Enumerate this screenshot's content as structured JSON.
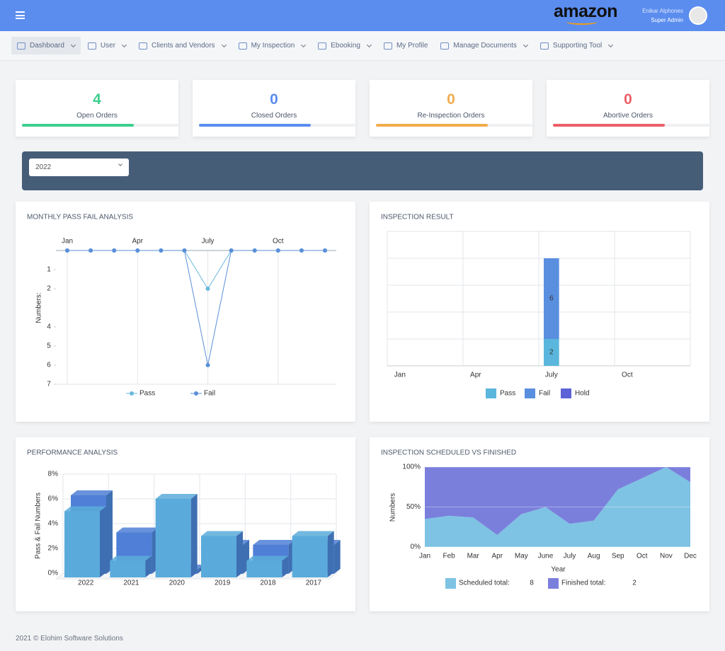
{
  "header": {
    "logo": "amazon",
    "user_name": "Enikar Alphones",
    "user_role": "Super Admin"
  },
  "nav": [
    {
      "label": "Dashboard",
      "dropdown": true,
      "active": true
    },
    {
      "label": "User",
      "dropdown": true
    },
    {
      "label": "Clients and Vendors",
      "dropdown": true
    },
    {
      "label": "My Inspection",
      "dropdown": true
    },
    {
      "label": "Ebooking",
      "dropdown": true
    },
    {
      "label": "My Profile",
      "dropdown": false
    },
    {
      "label": "Manage Documents",
      "dropdown": true
    },
    {
      "label": "Supporting Tool",
      "dropdown": true
    }
  ],
  "stats": [
    {
      "value": 4,
      "label": "Open Orders",
      "color": "#3ecf8e"
    },
    {
      "value": 0,
      "label": "Closed Orders",
      "color": "#5b8def"
    },
    {
      "value": 0,
      "label": "Re-Inspection Orders",
      "color": "#f0ad4e"
    },
    {
      "value": 0,
      "label": "Abortive Orders",
      "color": "#ec5f67"
    }
  ],
  "filter": {
    "year": "2022"
  },
  "chart_data": [
    {
      "type": "line",
      "title": "MONTHLY PASS FAIL ANALYSIS",
      "y_label": "Numbers:",
      "categories": [
        "Jan",
        null,
        null,
        "Apr",
        null,
        null,
        "July",
        null,
        null,
        "Oct",
        null,
        null
      ],
      "ylim": [
        0,
        7
      ],
      "yticks": [
        1,
        2,
        4,
        5,
        6,
        7
      ],
      "y_inverted": true,
      "grid": true,
      "series": [
        {
          "name": "Pass",
          "color": "#6ab8dc",
          "values": [
            0,
            0,
            0,
            0,
            0,
            0,
            2,
            0,
            0,
            0,
            0,
            0
          ]
        },
        {
          "name": "Fail",
          "color": "#5a8fd8",
          "values": [
            0,
            0,
            0,
            0,
            0,
            0,
            6,
            0,
            0,
            0,
            0,
            0
          ]
        }
      ]
    },
    {
      "type": "stacked_bar",
      "title": "INSPECTION RESULT",
      "categories": [
        "Jan",
        null,
        null,
        "Apr",
        null,
        null,
        "July",
        null,
        null,
        "Oct",
        null,
        null
      ],
      "ylim": [
        0,
        10
      ],
      "yticks": [
        0,
        2,
        4,
        6,
        8,
        10
      ],
      "ytick_labels": false,
      "grid": true,
      "show_value_labels": true,
      "series": [
        {
          "name": "Pass",
          "color": "#5ab6dc",
          "values": [
            0,
            0,
            0,
            0,
            0,
            0,
            2,
            0,
            0,
            0,
            0,
            0
          ]
        },
        {
          "name": "Fail",
          "color": "#5a8fe0",
          "values": [
            0,
            0,
            0,
            0,
            0,
            0,
            6,
            0,
            0,
            0,
            0,
            0
          ]
        },
        {
          "name": "Hold",
          "color": "#5b63d6",
          "values": [
            0,
            0,
            0,
            0,
            0,
            0,
            0,
            0,
            0,
            0,
            0,
            0
          ]
        }
      ]
    },
    {
      "type": "bar3d",
      "title": "PERFORMANCE ANALYSIS",
      "y_label": "Pass & Fail Numbers",
      "categories": [
        "2022",
        "2021",
        "2020",
        "2019",
        "2018",
        "2017"
      ],
      "ylim": [
        0,
        8
      ],
      "grid": true,
      "yticks": [
        {
          "value": 0,
          "label": "0%"
        },
        {
          "value": 2,
          "label": "2%"
        },
        {
          "value": 4,
          "label": "4%"
        },
        {
          "value": 6,
          "label": "6%"
        },
        {
          "value": 8,
          "label": "8%"
        }
      ],
      "series": [
        {
          "color": "#4f7fd6",
          "values": [
            6,
            3,
            0,
            2,
            2,
            2
          ]
        },
        {
          "color": "#5aabdb",
          "values": [
            5,
            1,
            6,
            3,
            1,
            3
          ]
        }
      ]
    },
    {
      "type": "stacked_area",
      "title": "INSPECTION SCHEDULED VS FINISHED",
      "x_label": "Year",
      "y_label": "Numbers",
      "categories": [
        "Jan",
        "Feb",
        "Mar",
        "Apr",
        "May",
        "June",
        "July",
        "Aug",
        "Sep",
        "Oct",
        "Nov",
        "Dec"
      ],
      "ylim": [
        0,
        100
      ],
      "grid": true,
      "yticks": [
        {
          "value": 0,
          "label": "0%"
        },
        {
          "value": 50,
          "label": "50%"
        },
        {
          "value": 100,
          "label": "100%"
        }
      ],
      "series": [
        {
          "name": "Scheduled total:",
          "total": 8,
          "color": "#7ec3e3",
          "values": [
            35,
            39,
            37,
            15,
            41,
            50,
            29,
            33,
            72,
            86,
            100,
            81
          ]
        },
        {
          "name": "Finished total:",
          "total": 2,
          "color": "#7b7fdc",
          "values": [
            65,
            61,
            63,
            85,
            59,
            50,
            71,
            67,
            28,
            14,
            0,
            19
          ]
        }
      ]
    }
  ],
  "footer": "2021 © Elohim Software Solutions"
}
